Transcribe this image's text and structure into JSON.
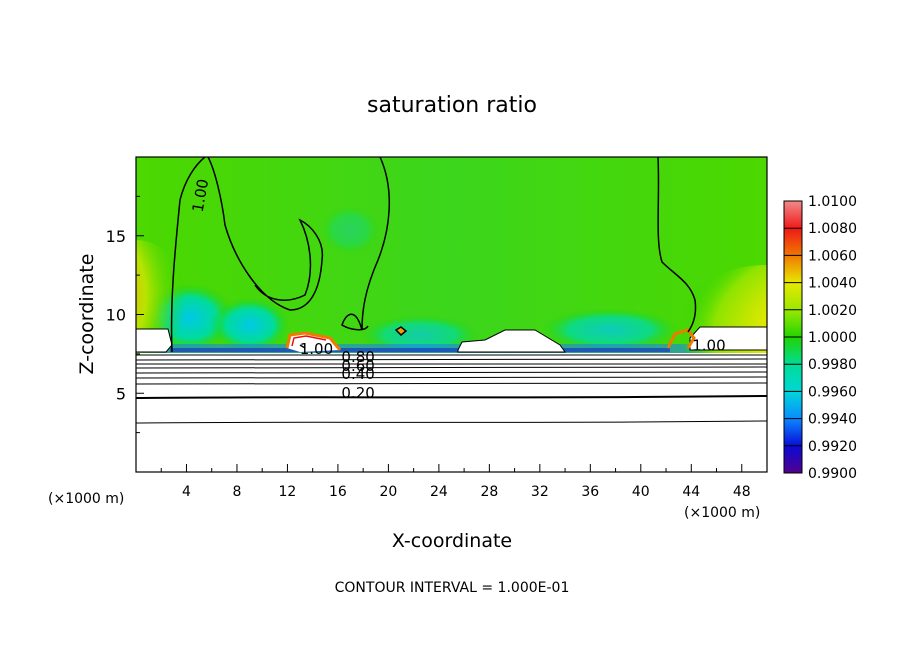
{
  "chart_data": {
    "type": "heatmap",
    "title": "saturation ratio",
    "xlabel": "X-coordinate",
    "ylabel": "Z-coordinate",
    "x_unit_left": "(×1000 m)",
    "x_unit_right": "(×1000 m)",
    "xlim": [
      0,
      50
    ],
    "ylim": [
      0,
      20
    ],
    "x_ticks": [
      4,
      8,
      12,
      16,
      20,
      24,
      28,
      32,
      36,
      40,
      44,
      48
    ],
    "y_ticks": [
      5,
      10,
      15
    ],
    "colorbar": {
      "range": [
        0.99,
        1.01
      ],
      "labels": [
        "1.0100",
        "1.0080",
        "1.0060",
        "1.0040",
        "1.0020",
        "1.0000",
        "0.9980",
        "0.9960",
        "0.9940",
        "0.9920",
        "0.9900"
      ],
      "colors": [
        "#f28a8a",
        "#f01818",
        "#f07a00",
        "#e8e800",
        "#9ae800",
        "#22d400",
        "#00dc96",
        "#00d7d7",
        "#0a8aff",
        "#0a0ad8",
        "#55008a"
      ]
    },
    "contour_interval": "1.000E-01",
    "footer": "CONTOUR INTERVAL = 1.000E-01",
    "contour_labels": [
      {
        "text": "1.00",
        "x": 5.5,
        "z": 17.5,
        "rotate": -80
      },
      {
        "text": "1.00",
        "x": 14.3,
        "z": 7.5,
        "rotate": 0
      },
      {
        "text": "0.80",
        "x": 17.6,
        "z": 7.0,
        "rotate": 0
      },
      {
        "text": "0.60",
        "x": 17.6,
        "z": 6.4,
        "rotate": 0
      },
      {
        "text": "0.40",
        "x": 17.6,
        "z": 5.9,
        "rotate": 0
      },
      {
        "text": "0.20",
        "x": 17.6,
        "z": 4.7,
        "rotate": 0
      },
      {
        "text": "1.00",
        "x": 45.4,
        "z": 7.7,
        "rotate": 0
      }
    ]
  }
}
